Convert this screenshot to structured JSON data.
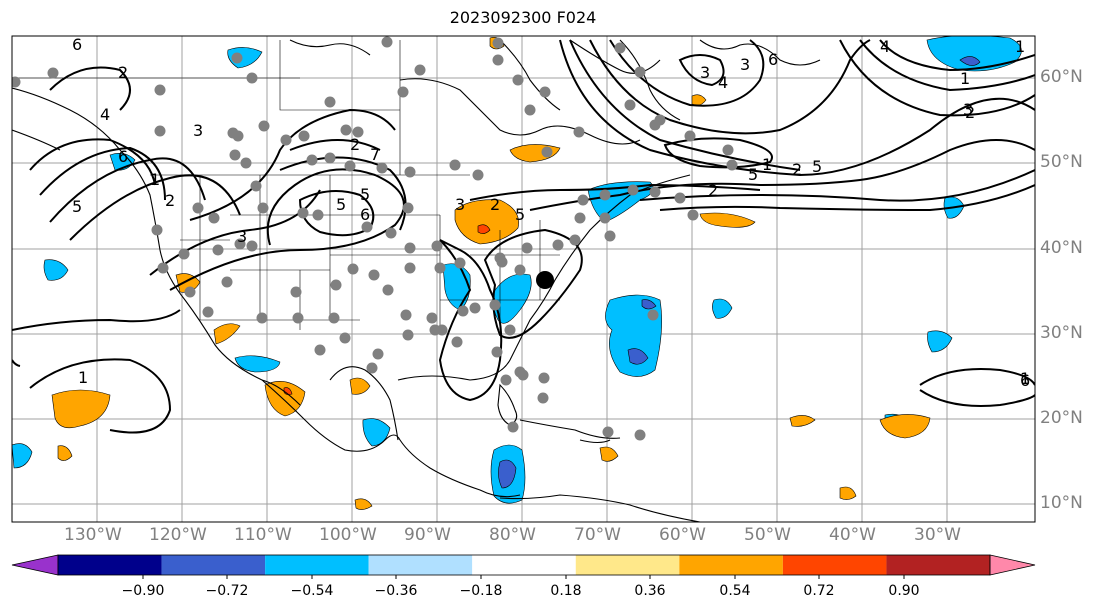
{
  "title": "2023092300 F024",
  "lat_labels": [
    "60°N",
    "50°N",
    "40°N",
    "30°N",
    "20°N",
    "10°N"
  ],
  "lon_labels": [
    "130°W",
    "120°W",
    "110°W",
    "100°W",
    "90°W",
    "80°W",
    "70°W",
    "60°W",
    "50°W",
    "40°W",
    "30°W"
  ],
  "contour_labels": [
    "6",
    "2",
    "3",
    "4",
    "5",
    "6",
    "1",
    "2",
    "3",
    "5",
    "2",
    "1",
    "5",
    "6",
    "7",
    "3",
    "2",
    "5",
    "4",
    "3",
    "6",
    "3",
    "5",
    "1",
    "2",
    "2",
    "5",
    "6",
    "1",
    "1",
    "1",
    "2",
    "3",
    "4"
  ],
  "colorbar": {
    "ticks": [
      "−0.90",
      "−0.72",
      "−0.54",
      "−0.36",
      "−0.18",
      "0.18",
      "0.36",
      "0.54",
      "0.72",
      "0.90"
    ],
    "colors": [
      "#9932cc",
      "#00008b",
      "#3a5fcd",
      "#00bfff",
      "#b0e0ff",
      "#ffffff",
      "#ffe88a",
      "#ffa500",
      "#ff4500",
      "#b22222",
      "#ff88aa"
    ]
  },
  "colors": {
    "station_marker": "#808080",
    "negative_fill": "#00bfff",
    "positive_fill": "#ffa500"
  }
}
